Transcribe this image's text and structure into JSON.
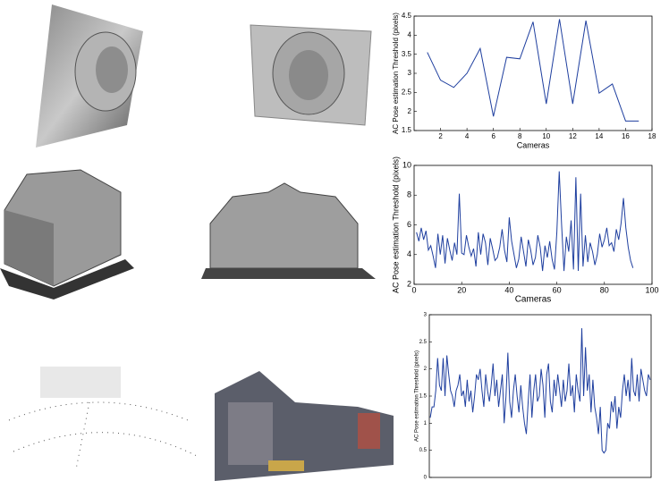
{
  "chart_data": [
    {
      "type": "line",
      "xlabel": "Cameras",
      "ylabel": "AC Pose estimation Threshold (pixels)",
      "color": "#1f3f9f",
      "x": [
        1,
        2,
        3,
        4,
        5,
        6,
        7,
        8,
        9,
        10,
        11,
        12,
        13,
        14,
        15,
        16,
        17
      ],
      "values": [
        3.55,
        2.82,
        2.63,
        3.0,
        3.65,
        1.87,
        3.42,
        3.38,
        4.35,
        2.2,
        4.42,
        2.2,
        4.38,
        2.48,
        2.72,
        1.75,
        1.75
      ],
      "xlim": [
        0,
        18
      ],
      "xticks": [
        2,
        4,
        6,
        8,
        10,
        12,
        14,
        16,
        18
      ],
      "ylim": [
        1.5,
        4.5
      ],
      "yticks": [
        1.5,
        2,
        2.5,
        3,
        3.5,
        4,
        4.5
      ]
    },
    {
      "type": "line",
      "xlabel": "Cameras",
      "ylabel": "AC Pose estimation Threshold (pixels)",
      "color": "#1f3f9f",
      "x": [
        1,
        2,
        3,
        4,
        5,
        6,
        7,
        8,
        9,
        10,
        11,
        12,
        13,
        14,
        15,
        16,
        17,
        18,
        19,
        20,
        21,
        22,
        23,
        24,
        25,
        26,
        27,
        28,
        29,
        30,
        31,
        32,
        33,
        34,
        35,
        36,
        37,
        38,
        39,
        40,
        41,
        42,
        43,
        44,
        45,
        46,
        47,
        48,
        49,
        50,
        51,
        52,
        53,
        54,
        55,
        56,
        57,
        58,
        59,
        60,
        61,
        62,
        63,
        64,
        65,
        66,
        67,
        68,
        69,
        70,
        71,
        72,
        73,
        74,
        75,
        76,
        77,
        78,
        79,
        80,
        81,
        82,
        83,
        84,
        85,
        86,
        87,
        88,
        89,
        90,
        91,
        92
      ],
      "values": [
        5.5,
        4.9,
        5.8,
        5.0,
        5.6,
        4.3,
        4.6,
        3.9,
        3.1,
        5.4,
        4.0,
        5.3,
        3.4,
        5.1,
        4.3,
        3.6,
        4.8,
        4.0,
        8.1,
        4.1,
        4.0,
        5.3,
        4.5,
        3.9,
        4.4,
        3.2,
        5.5,
        4.0,
        5.4,
        4.8,
        3.3,
        5.1,
        4.4,
        3.6,
        3.8,
        4.5,
        5.7,
        4.3,
        3.5,
        6.5,
        4.9,
        4.0,
        3.1,
        3.7,
        5.2,
        4.2,
        3.2,
        5.0,
        4.3,
        3.3,
        3.8,
        5.3,
        4.5,
        2.9,
        4.6,
        3.8,
        4.9,
        3.7,
        3.0,
        5.5,
        9.6,
        6.0,
        2.9,
        5.2,
        4.2,
        6.3,
        3.0,
        9.2,
        2.9,
        8.1,
        3.2,
        5.3,
        3.5,
        4.8,
        4.2,
        3.3,
        4.0,
        5.4,
        4.5,
        5.0,
        5.8,
        4.6,
        4.8,
        4.2,
        5.7,
        5.0,
        6.1,
        7.8,
        5.8,
        4.5,
        3.6,
        3.1
      ],
      "xlim": [
        0,
        100
      ],
      "xticks": [
        0,
        20,
        40,
        60,
        80,
        100
      ],
      "ylim": [
        2,
        10
      ],
      "yticks": [
        2,
        4,
        6,
        8,
        10
      ]
    },
    {
      "type": "line",
      "ylabel": "AC Pose estimation Threshold (pixels)",
      "color": "#1f3f9f",
      "values": [
        1.1,
        1.3,
        1.3,
        1.6,
        2.2,
        1.7,
        1.6,
        2.2,
        1.5,
        2.25,
        1.9,
        1.6,
        1.5,
        1.3,
        1.6,
        1.7,
        1.9,
        1.5,
        1.6,
        1.3,
        1.8,
        1.4,
        1.6,
        1.2,
        1.5,
        1.9,
        1.8,
        2.0,
        1.6,
        1.3,
        1.9,
        1.6,
        1.4,
        1.7,
        2.1,
        1.5,
        1.8,
        1.3,
        1.6,
        1.9,
        1.0,
        1.5,
        2.3,
        1.4,
        1.1,
        1.6,
        1.9,
        1.5,
        1.2,
        1.7,
        1.3,
        1.0,
        0.8,
        1.4,
        1.9,
        1.1,
        1.6,
        1.9,
        1.4,
        1.5,
        2.0,
        1.7,
        1.1,
        1.9,
        2.1,
        1.4,
        1.2,
        1.8,
        1.5,
        1.9,
        1.6,
        1.3,
        1.8,
        1.4,
        1.6,
        2.1,
        1.5,
        1.7,
        1.2,
        1.9,
        1.6,
        1.4,
        2.75,
        1.5,
        2.4,
        1.6,
        1.9,
        1.2,
        1.8,
        1.3,
        1.1,
        0.8,
        1.3,
        0.5,
        0.45,
        0.5,
        1.0,
        0.9,
        1.4,
        1.2,
        1.5,
        0.9,
        1.3,
        1.1,
        1.6,
        1.9,
        1.5,
        1.8,
        1.4,
        2.2,
        1.6,
        1.5,
        1.9,
        1.4,
        2.0,
        1.8,
        1.6,
        1.5,
        1.9,
        1.8
      ],
      "ylim": [
        0,
        3
      ],
      "yticks": [
        0,
        0.5,
        1,
        1.5,
        2,
        2.5,
        3
      ]
    }
  ]
}
